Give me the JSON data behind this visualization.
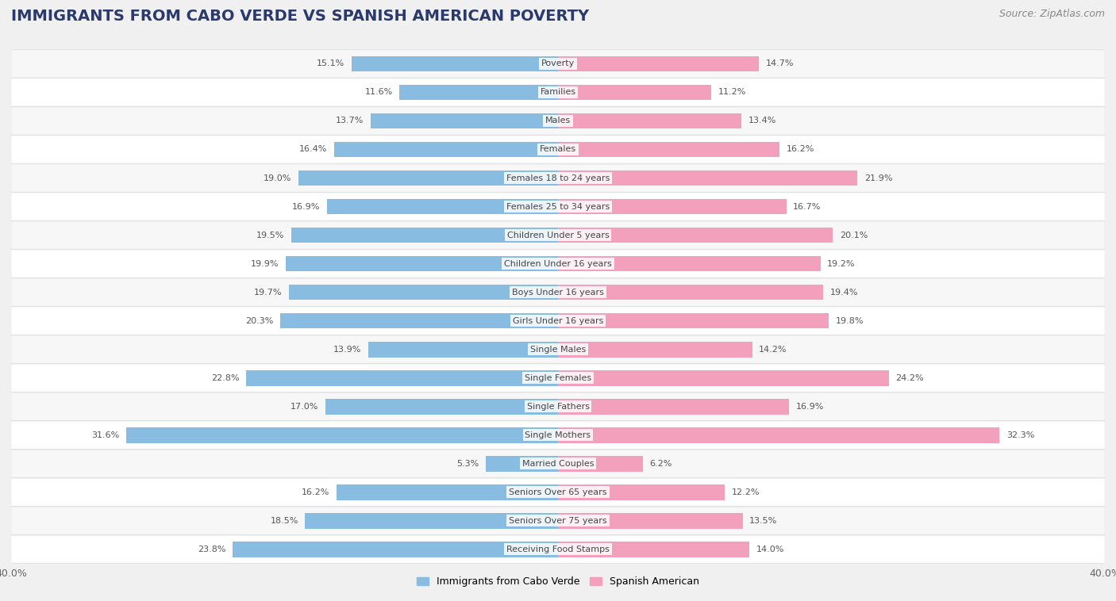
{
  "title": "IMMIGRANTS FROM CABO VERDE VS SPANISH AMERICAN POVERTY",
  "source": "Source: ZipAtlas.com",
  "categories": [
    "Poverty",
    "Families",
    "Males",
    "Females",
    "Females 18 to 24 years",
    "Females 25 to 34 years",
    "Children Under 5 years",
    "Children Under 16 years",
    "Boys Under 16 years",
    "Girls Under 16 years",
    "Single Males",
    "Single Females",
    "Single Fathers",
    "Single Mothers",
    "Married Couples",
    "Seniors Over 65 years",
    "Seniors Over 75 years",
    "Receiving Food Stamps"
  ],
  "cabo_verde": [
    15.1,
    11.6,
    13.7,
    16.4,
    19.0,
    16.9,
    19.5,
    19.9,
    19.7,
    20.3,
    13.9,
    22.8,
    17.0,
    31.6,
    5.3,
    16.2,
    18.5,
    23.8
  ],
  "spanish_american": [
    14.7,
    11.2,
    13.4,
    16.2,
    21.9,
    16.7,
    20.1,
    19.2,
    19.4,
    19.8,
    14.2,
    24.2,
    16.9,
    32.3,
    6.2,
    12.2,
    13.5,
    14.0
  ],
  "cabo_verde_color": "#88bce0",
  "spanish_american_color": "#f2a0bb",
  "row_bg_even": "#f7f7f7",
  "row_bg_odd": "#ffffff",
  "outer_bg": "#f0f0f0",
  "border_color": "#dddddd",
  "axis_limit": 40.0,
  "legend_label_cabo": "Immigrants from Cabo Verde",
  "legend_label_spanish": "Spanish American",
  "title_fontsize": 14,
  "source_fontsize": 9,
  "label_fontsize": 8,
  "cat_fontsize": 8,
  "bar_height": 0.55,
  "value_label_color": "#555555",
  "cat_label_color": "#444444",
  "title_color": "#2a3a6e",
  "source_color": "#888888"
}
